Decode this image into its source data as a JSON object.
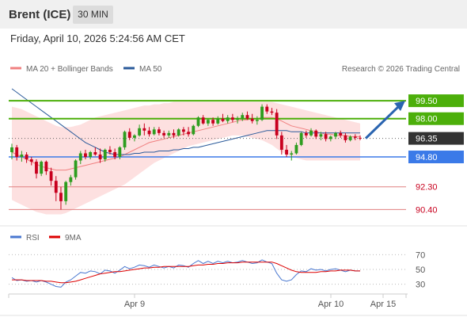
{
  "header": {
    "instrument": "Brent (ICE)",
    "timeframe": "30 MIN",
    "timestamp": "Friday, April 10, 2026 5:24:56 AM CET"
  },
  "legend": {
    "ma20_label": "MA 20 + Bollinger Bands",
    "ma20_color": "#f08080",
    "ma50_label": "MA 50",
    "ma50_color": "#2a5a9a",
    "rsi_label": "RSI",
    "rsi_color": "#4a78d0",
    "rsi9ma_label": "9MA",
    "rsi9ma_color": "#dd0000"
  },
  "copyright": "Research © 2026 Trading Central",
  "colors": {
    "up": "#2e9d1f",
    "down": "#c8001e",
    "resistance": "#4caf0a",
    "support": "#3b7ae8",
    "dashed_level": "#e08080",
    "current": "#333333",
    "band_fill": "#fde0e0",
    "arrow": "#2a64b0"
  },
  "chart_data": [
    {
      "type": "candlestick",
      "x_labels": [
        "Apr 9",
        "Apr 10",
        "Apr 15"
      ],
      "ylim": [
        89.5,
        100.5
      ],
      "levels": [
        {
          "label": "99.50",
          "value": 99.5,
          "kind": "resistance"
        },
        {
          "label": "98.00",
          "value": 98.0,
          "kind": "resistance"
        },
        {
          "label": "96.35",
          "value": 96.35,
          "kind": "current"
        },
        {
          "label": "94.80",
          "value": 94.8,
          "kind": "support"
        },
        {
          "label": "92.30",
          "value": 92.3,
          "kind": "target"
        },
        {
          "label": "90.40",
          "value": 90.4,
          "kind": "target"
        }
      ],
      "ohlc": [
        [
          95.2,
          95.9,
          94.6,
          95.6
        ],
        [
          95.6,
          95.8,
          94.5,
          94.8
        ],
        [
          94.8,
          95.3,
          94.4,
          95.0
        ],
        [
          95.0,
          95.2,
          94.3,
          94.6
        ],
        [
          94.6,
          94.8,
          94.1,
          94.4
        ],
        [
          94.4,
          94.6,
          93.0,
          93.4
        ],
        [
          93.4,
          94.5,
          93.2,
          94.4
        ],
        [
          94.4,
          94.5,
          93.3,
          93.6
        ],
        [
          93.6,
          93.9,
          92.4,
          92.8
        ],
        [
          92.8,
          93.2,
          91.1,
          91.8
        ],
        [
          91.8,
          92.3,
          90.4,
          91.1
        ],
        [
          91.1,
          92.8,
          90.8,
          92.7
        ],
        [
          92.7,
          93.3,
          92.4,
          93.1
        ],
        [
          93.1,
          94.6,
          92.9,
          94.5
        ],
        [
          94.5,
          95.3,
          94.2,
          95.1
        ],
        [
          95.1,
          95.4,
          94.6,
          94.8
        ],
        [
          94.8,
          95.3,
          94.6,
          95.2
        ],
        [
          95.2,
          95.6,
          94.9,
          95.0
        ],
        [
          95.0,
          95.5,
          94.3,
          94.6
        ],
        [
          94.6,
          95.5,
          94.4,
          95.4
        ],
        [
          95.4,
          95.7,
          95.0,
          95.2
        ],
        [
          95.2,
          95.5,
          94.6,
          94.8
        ],
        [
          94.8,
          95.7,
          94.6,
          95.6
        ],
        [
          95.6,
          97.0,
          95.4,
          96.9
        ],
        [
          96.9,
          97.2,
          96.2,
          96.4
        ],
        [
          96.4,
          96.7,
          96.1,
          96.6
        ],
        [
          96.6,
          97.5,
          96.5,
          97.2
        ],
        [
          97.2,
          97.6,
          96.6,
          97.0
        ],
        [
          97.0,
          97.3,
          96.5,
          96.7
        ],
        [
          96.7,
          97.3,
          96.6,
          97.1
        ],
        [
          97.1,
          97.3,
          96.6,
          96.8
        ],
        [
          96.8,
          97.0,
          96.4,
          96.6
        ],
        [
          96.6,
          97.0,
          96.4,
          96.8
        ],
        [
          96.8,
          97.1,
          96.4,
          96.6
        ],
        [
          96.6,
          97.2,
          96.5,
          97.1
        ],
        [
          97.1,
          97.3,
          96.6,
          96.9
        ],
        [
          96.9,
          97.3,
          96.5,
          96.7
        ],
        [
          96.7,
          97.5,
          96.6,
          97.4
        ],
        [
          97.4,
          98.2,
          97.3,
          98.1
        ],
        [
          98.1,
          98.3,
          97.5,
          97.6
        ],
        [
          97.6,
          98.0,
          97.4,
          97.9
        ],
        [
          97.9,
          98.1,
          97.4,
          97.6
        ],
        [
          97.6,
          98.2,
          97.5,
          98.0
        ],
        [
          98.0,
          98.4,
          97.7,
          97.8
        ],
        [
          97.8,
          98.3,
          97.6,
          98.1
        ],
        [
          98.1,
          98.4,
          97.7,
          97.9
        ],
        [
          97.9,
          98.2,
          97.6,
          98.0
        ],
        [
          98.0,
          98.5,
          97.8,
          98.3
        ],
        [
          98.3,
          98.6,
          97.9,
          98.0
        ],
        [
          98.0,
          98.4,
          97.6,
          97.8
        ],
        [
          97.8,
          98.2,
          97.5,
          97.9
        ],
        [
          97.9,
          99.2,
          97.8,
          99.0
        ],
        [
          99.0,
          99.2,
          98.4,
          98.6
        ],
        [
          98.6,
          98.9,
          98.3,
          98.5
        ],
        [
          98.5,
          98.8,
          96.3,
          96.6
        ],
        [
          96.6,
          96.9,
          95.0,
          95.4
        ],
        [
          95.4,
          95.8,
          94.8,
          95.0
        ],
        [
          95.0,
          95.3,
          94.5,
          95.1
        ],
        [
          95.1,
          96.0,
          95.0,
          95.8
        ],
        [
          95.8,
          96.9,
          95.7,
          96.8
        ],
        [
          96.8,
          97.0,
          96.4,
          96.6
        ],
        [
          96.6,
          97.2,
          96.5,
          97.0
        ],
        [
          97.0,
          97.1,
          96.3,
          96.5
        ],
        [
          96.5,
          96.9,
          96.2,
          96.7
        ],
        [
          96.7,
          96.9,
          96.1,
          96.3
        ],
        [
          96.3,
          96.6,
          96.1,
          96.5
        ],
        [
          96.5,
          96.9,
          96.3,
          96.8
        ],
        [
          96.8,
          97.0,
          96.4,
          96.6
        ],
        [
          96.6,
          96.8,
          96.0,
          96.2
        ],
        [
          96.2,
          96.6,
          96.1,
          96.5
        ],
        [
          96.5,
          96.7,
          96.2,
          96.4
        ],
        [
          96.4,
          96.6,
          96.2,
          96.35
        ]
      ],
      "ma20": [
        95.2,
        95.0,
        94.8,
        94.6,
        94.4,
        94.2,
        94.0,
        93.9,
        93.8,
        93.7,
        93.7,
        93.7,
        93.8,
        93.9,
        94.0,
        94.1,
        94.2,
        94.3,
        94.4,
        94.5,
        94.6,
        94.7,
        94.8,
        95.0,
        95.2,
        95.4,
        95.6,
        95.8,
        96.0,
        96.1,
        96.2,
        96.3,
        96.4,
        96.5,
        96.6,
        96.7,
        96.8,
        96.9,
        97.0,
        97.1,
        97.2,
        97.3,
        97.4,
        97.5,
        97.6,
        97.7,
        97.8,
        97.9,
        97.9,
        98.0,
        98.0,
        98.1,
        98.1,
        98.1,
        98.0,
        97.8,
        97.6,
        97.4,
        97.3,
        97.2,
        97.1,
        97.0,
        96.9,
        96.8,
        96.7,
        96.7,
        96.6,
        96.6,
        96.6,
        96.5,
        96.5,
        96.5
      ],
      "bollinger_upper": [
        99.0,
        98.9,
        98.8,
        98.6,
        98.4,
        98.2,
        98.0,
        97.8,
        97.6,
        97.4,
        97.3,
        97.3,
        97.3,
        97.4,
        97.5,
        97.7,
        97.9,
        98.1,
        98.2,
        98.3,
        98.4,
        98.5,
        98.6,
        98.7,
        98.8,
        98.9,
        99.0,
        99.1,
        99.1,
        99.2,
        99.2,
        99.3,
        99.3,
        99.4,
        99.4,
        99.4,
        99.4,
        99.4,
        99.4,
        99.4,
        99.4,
        99.4,
        99.4,
        99.4,
        99.4,
        99.4,
        99.4,
        99.4,
        99.4,
        99.4,
        99.4,
        99.4,
        99.4,
        99.4,
        99.3,
        99.2,
        99.1,
        99.0,
        98.9,
        98.8,
        98.7,
        98.6,
        98.5,
        98.4,
        98.3,
        98.2,
        98.1,
        98.0,
        97.9,
        97.8,
        97.7,
        97.6
      ],
      "bollinger_lower": [
        91.2,
        91.0,
        90.8,
        90.6,
        90.4,
        90.2,
        90.1,
        90.0,
        90.0,
        90.0,
        90.0,
        90.1,
        90.3,
        90.5,
        90.7,
        90.9,
        91.1,
        91.3,
        91.5,
        91.7,
        91.9,
        92.1,
        92.3,
        92.5,
        92.8,
        93.1,
        93.4,
        93.7,
        94.0,
        94.3,
        94.5,
        94.7,
        94.9,
        95.1,
        95.3,
        95.5,
        95.7,
        95.8,
        95.9,
        96.0,
        96.1,
        96.2,
        96.3,
        96.4,
        96.5,
        96.6,
        96.6,
        96.6,
        96.5,
        96.4,
        96.3,
        96.2,
        96.0,
        95.8,
        95.5,
        95.2,
        95.0,
        94.8,
        94.7,
        94.6,
        94.5,
        94.5,
        94.5,
        94.5,
        94.5,
        94.5,
        94.5,
        94.5,
        94.5,
        94.5,
        94.5,
        94.5
      ],
      "ma50": [
        100.5,
        100.2,
        99.9,
        99.6,
        99.3,
        99.0,
        98.7,
        98.4,
        98.1,
        97.8,
        97.5,
        97.2,
        96.9,
        96.6,
        96.3,
        96.0,
        95.8,
        95.6,
        95.4,
        95.2,
        95.1,
        95.0,
        95.0,
        95.0,
        95.0,
        95.1,
        95.1,
        95.2,
        95.2,
        95.2,
        95.3,
        95.3,
        95.3,
        95.4,
        95.4,
        95.5,
        95.5,
        95.6,
        95.6,
        95.7,
        95.8,
        95.9,
        96.0,
        96.1,
        96.2,
        96.3,
        96.4,
        96.5,
        96.6,
        96.7,
        96.8,
        96.9,
        97.0,
        97.0,
        97.0,
        97.0,
        97.0,
        96.9,
        96.9,
        96.9,
        96.8,
        96.8,
        96.8,
        96.8,
        96.8,
        96.8,
        96.8,
        96.8,
        96.8,
        96.8,
        96.8,
        96.8
      ]
    },
    {
      "type": "line",
      "title": "RSI",
      "ylim": [
        20,
        80
      ],
      "y_ticks": [
        "70",
        "50",
        "30"
      ],
      "series": [
        {
          "name": "RSI",
          "values": [
            39,
            35,
            36,
            34,
            35,
            33,
            35,
            33,
            30,
            27,
            26,
            33,
            36,
            41,
            46,
            45,
            48,
            47,
            44,
            49,
            48,
            45,
            49,
            54,
            51,
            53,
            56,
            55,
            53,
            56,
            54,
            52,
            54,
            52,
            56,
            55,
            53,
            58,
            62,
            58,
            61,
            58,
            61,
            59,
            61,
            59,
            60,
            62,
            60,
            58,
            59,
            63,
            60,
            58,
            45,
            36,
            34,
            36,
            43,
            48,
            47,
            51,
            49,
            50,
            48,
            50,
            51,
            49,
            47,
            49,
            48,
            48
          ]
        },
        {
          "name": "9MA",
          "values": [
            36,
            36,
            36,
            35,
            35,
            35,
            35,
            34,
            34,
            33,
            32,
            32,
            33,
            34,
            36,
            38,
            40,
            42,
            44,
            45,
            46,
            47,
            47,
            48,
            49,
            50,
            51,
            52,
            52,
            53,
            53,
            54,
            54,
            54,
            54,
            54,
            54,
            55,
            56,
            56,
            57,
            57,
            58,
            58,
            59,
            59,
            59,
            60,
            60,
            60,
            60,
            60,
            60,
            60,
            58,
            55,
            52,
            49,
            47,
            46,
            46,
            46,
            46,
            47,
            47,
            48,
            48,
            49,
            49,
            49,
            48,
            48
          ]
        }
      ]
    }
  ]
}
